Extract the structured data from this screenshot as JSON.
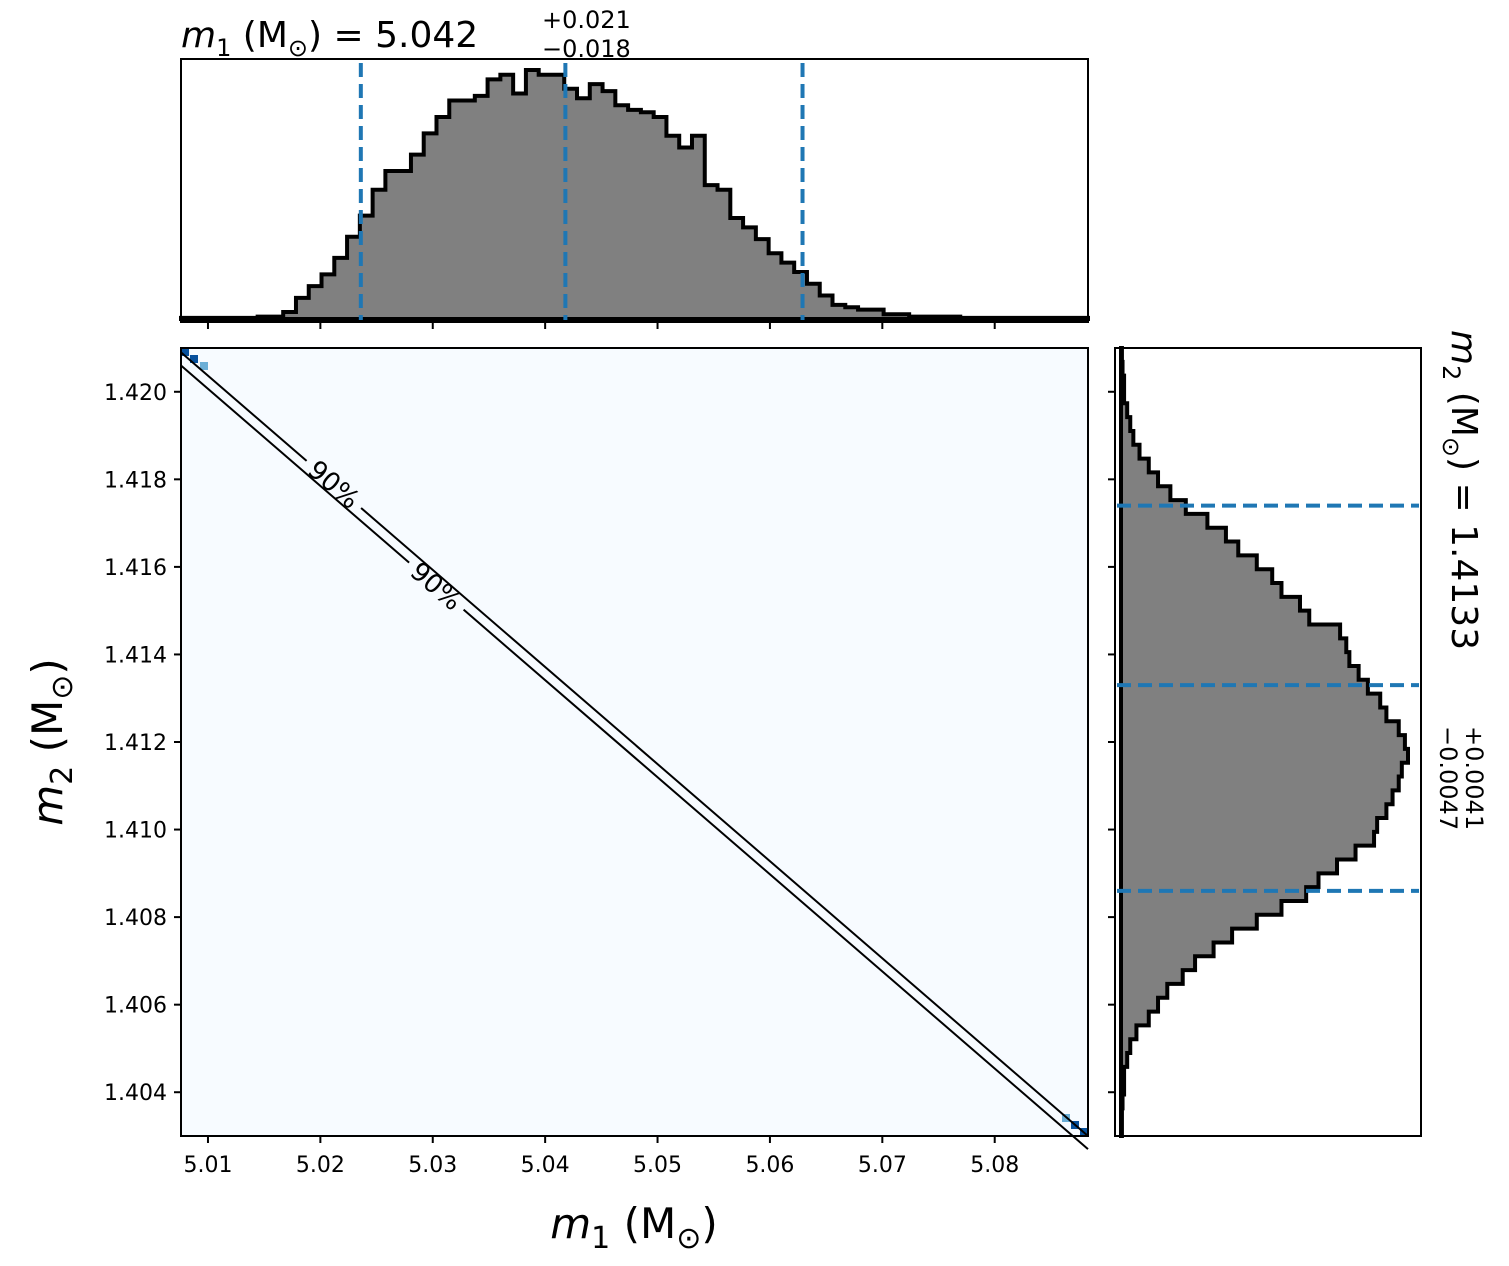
{
  "chart_data": {
    "type": "corner",
    "parameters": [
      {
        "symbol": "m",
        "subscript": "1",
        "unit": "M",
        "unit_symbol": "⊙",
        "median": "5.042",
        "plus": "+0.021",
        "minus": "−0.018",
        "lim": [
          5.0076,
          5.0883
        ],
        "ticks": [
          5.01,
          5.02,
          5.03,
          5.04,
          5.05,
          5.06,
          5.07,
          5.08
        ],
        "tick_labels": [
          "5.01",
          "5.02",
          "5.03",
          "5.04",
          "5.05",
          "5.06",
          "5.07",
          "5.08"
        ],
        "quantiles": [
          5.0236,
          5.0418,
          5.0629
        ]
      },
      {
        "symbol": "m",
        "subscript": "2",
        "unit": "M",
        "unit_symbol": "⊙",
        "median": "1.4133",
        "plus": "+0.0041",
        "minus": "−0.0047",
        "lim": [
          1.403,
          1.421
        ],
        "ticks": [
          1.404,
          1.406,
          1.408,
          1.41,
          1.412,
          1.414,
          1.416,
          1.418,
          1.42
        ],
        "tick_labels": [
          "1.404",
          "1.406",
          "1.408",
          "1.410",
          "1.412",
          "1.414",
          "1.416",
          "1.418",
          "1.420"
        ],
        "quantiles": [
          1.4086,
          1.4133,
          1.4174
        ]
      }
    ],
    "hist_m1": {
      "bin_edges_range": [
        5.0076,
        5.0883
      ],
      "counts": [
        0.5,
        0.5,
        0.5,
        0.5,
        0.5,
        0.5,
        1,
        1,
        3,
        9,
        14,
        19,
        26,
        35,
        44,
        55,
        63,
        63,
        70,
        79,
        86,
        93,
        93,
        95,
        102,
        104,
        96,
        106,
        104,
        104,
        98,
        94,
        100,
        97,
        91,
        89,
        88,
        86,
        78,
        73,
        78,
        57,
        55,
        43,
        39,
        34,
        28,
        24,
        20,
        15,
        10,
        6,
        5,
        4,
        4,
        2,
        2,
        1,
        1,
        1,
        1,
        0.5,
        0.5,
        0.5,
        0.5,
        0.5,
        0.5,
        0.5,
        0.5,
        0.5,
        0.5
      ]
    },
    "hist_m2": {
      "bin_edges_range": [
        1.403,
        1.421
      ],
      "counts": [
        0.3,
        0.3,
        0.5,
        1,
        1,
        2,
        3,
        5,
        9,
        12,
        15,
        20,
        24,
        30,
        36,
        44,
        52,
        60,
        64,
        70,
        76,
        82,
        83,
        86,
        88,
        90,
        91,
        93,
        92,
        90,
        86,
        84,
        80,
        77,
        74,
        73,
        71,
        61,
        58,
        52,
        49,
        44,
        38,
        34,
        28,
        21,
        16,
        12,
        9,
        6,
        4,
        3,
        2,
        1,
        1,
        0.5,
        0.3
      ]
    },
    "contour": {
      "level_label": "90%",
      "lines": [
        [
          [
            5.0076,
            1.4209
          ],
          [
            5.0883,
            1.403
          ]
        ],
        [
          [
            5.0076,
            1.4206
          ],
          [
            5.0883,
            1.4027
          ]
        ]
      ],
      "label_positions": [
        [
          5.0226,
          1.4183
        ],
        [
          5.0318,
          1.416
        ]
      ]
    },
    "density_background": "#f7fbff",
    "density_peak_color": "#08519c",
    "density_mid_color": "#6baed6",
    "hist_fill": "#808080",
    "hist_edge": "#000000",
    "quantile_color": "#1f77b4"
  }
}
